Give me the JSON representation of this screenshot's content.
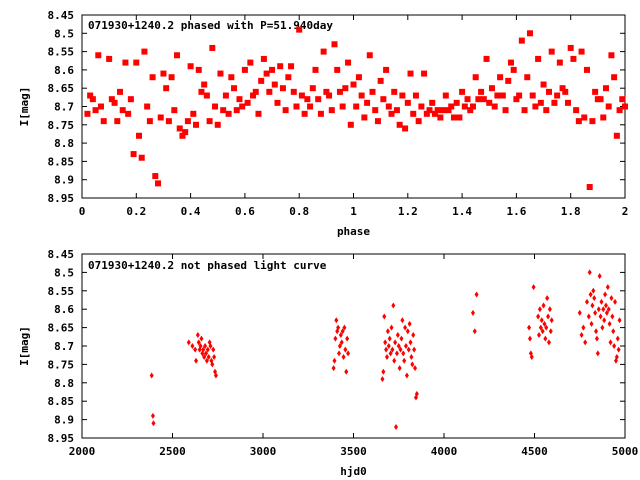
{
  "point_color": "#ff0000",
  "chart_data": [
    {
      "type": "scatter",
      "title": "071930+1240.2 phased with P=51.940day",
      "xlabel": "phase",
      "ylabel": "I[mag]",
      "xlim": [
        0,
        2
      ],
      "ylim": [
        8.45,
        8.95
      ],
      "y_inverted": true,
      "x_ticks": [
        "0",
        "0.2",
        "0.4",
        "0.6",
        "0.8",
        "1",
        "1.2",
        "1.4",
        "1.6",
        "1.8",
        "2"
      ],
      "y_ticks": [
        "8.45",
        "8.5",
        "8.55",
        "8.6",
        "8.65",
        "8.7",
        "8.75",
        "8.8",
        "8.85",
        "8.9",
        "8.95"
      ],
      "grid": false,
      "points": [
        [
          0.02,
          8.72
        ],
        [
          0.03,
          8.67
        ],
        [
          0.04,
          8.68
        ],
        [
          0.05,
          8.71
        ],
        [
          0.06,
          8.56
        ],
        [
          0.07,
          8.7
        ],
        [
          0.08,
          8.74
        ],
        [
          0.1,
          8.57
        ],
        [
          0.11,
          8.68
        ],
        [
          0.12,
          8.69
        ],
        [
          0.13,
          8.74
        ],
        [
          0.14,
          8.66
        ],
        [
          0.15,
          8.71
        ],
        [
          0.16,
          8.58
        ],
        [
          0.17,
          8.72
        ],
        [
          0.18,
          8.68
        ],
        [
          0.19,
          8.83
        ],
        [
          0.2,
          8.58
        ],
        [
          0.21,
          8.78
        ],
        [
          0.22,
          8.84
        ],
        [
          0.23,
          8.55
        ],
        [
          0.24,
          8.7
        ],
        [
          0.25,
          8.74
        ],
        [
          0.26,
          8.62
        ],
        [
          0.27,
          8.89
        ],
        [
          0.28,
          8.91
        ],
        [
          0.29,
          8.73
        ],
        [
          0.3,
          8.61
        ],
        [
          0.31,
          8.65
        ],
        [
          0.32,
          8.74
        ],
        [
          0.33,
          8.62
        ],
        [
          0.34,
          8.71
        ],
        [
          0.35,
          8.56
        ],
        [
          0.36,
          8.76
        ],
        [
          0.37,
          8.78
        ],
        [
          0.38,
          8.77
        ],
        [
          0.39,
          8.74
        ],
        [
          0.4,
          8.59
        ],
        [
          0.41,
          8.72
        ],
        [
          0.42,
          8.75
        ],
        [
          0.43,
          8.6
        ],
        [
          0.44,
          8.66
        ],
        [
          0.45,
          8.64
        ],
        [
          0.46,
          8.67
        ],
        [
          0.47,
          8.74
        ],
        [
          0.48,
          8.54
        ],
        [
          0.49,
          8.7
        ],
        [
          0.5,
          8.75
        ],
        [
          0.51,
          8.61
        ],
        [
          0.52,
          8.71
        ],
        [
          0.53,
          8.67
        ],
        [
          0.54,
          8.72
        ],
        [
          0.55,
          8.62
        ],
        [
          0.56,
          8.65
        ],
        [
          0.57,
          8.71
        ],
        [
          0.58,
          8.68
        ],
        [
          0.59,
          8.7
        ],
        [
          0.6,
          8.6
        ],
        [
          0.61,
          8.69
        ],
        [
          0.62,
          8.58
        ],
        [
          0.63,
          8.67
        ],
        [
          0.64,
          8.66
        ],
        [
          0.65,
          8.72
        ],
        [
          0.66,
          8.63
        ],
        [
          0.67,
          8.57
        ],
        [
          0.68,
          8.61
        ],
        [
          0.69,
          8.66
        ],
        [
          0.7,
          8.6
        ],
        [
          0.71,
          8.64
        ],
        [
          0.72,
          8.69
        ],
        [
          0.73,
          8.59
        ],
        [
          0.74,
          8.65
        ],
        [
          0.75,
          8.71
        ],
        [
          0.76,
          8.62
        ],
        [
          0.77,
          8.59
        ],
        [
          0.78,
          8.66
        ],
        [
          0.79,
          8.7
        ],
        [
          0.8,
          8.49
        ],
        [
          0.81,
          8.67
        ],
        [
          0.82,
          8.72
        ],
        [
          0.83,
          8.68
        ],
        [
          0.84,
          8.7
        ],
        [
          0.85,
          8.65
        ],
        [
          0.86,
          8.6
        ],
        [
          0.87,
          8.68
        ],
        [
          0.88,
          8.72
        ],
        [
          0.89,
          8.55
        ],
        [
          0.9,
          8.66
        ],
        [
          0.91,
          8.67
        ],
        [
          0.92,
          8.71
        ],
        [
          0.93,
          8.53
        ],
        [
          0.94,
          8.6
        ],
        [
          0.95,
          8.66
        ],
        [
          0.96,
          8.7
        ],
        [
          0.97,
          8.65
        ],
        [
          0.98,
          8.58
        ],
        [
          0.99,
          8.75
        ],
        [
          1.0,
          8.64
        ],
        [
          1.01,
          8.7
        ],
        [
          1.02,
          8.62
        ],
        [
          1.03,
          8.67
        ],
        [
          1.04,
          8.73
        ],
        [
          1.05,
          8.69
        ],
        [
          1.06,
          8.56
        ],
        [
          1.07,
          8.66
        ],
        [
          1.08,
          8.71
        ],
        [
          1.09,
          8.74
        ],
        [
          1.1,
          8.63
        ],
        [
          1.11,
          8.68
        ],
        [
          1.12,
          8.6
        ],
        [
          1.13,
          8.7
        ],
        [
          1.14,
          8.72
        ],
        [
          1.15,
          8.66
        ],
        [
          1.16,
          8.71
        ],
        [
          1.17,
          8.75
        ],
        [
          1.18,
          8.67
        ],
        [
          1.19,
          8.76
        ],
        [
          1.2,
          8.69
        ],
        [
          1.21,
          8.61
        ],
        [
          1.22,
          8.72
        ],
        [
          1.23,
          8.67
        ],
        [
          1.24,
          8.74
        ],
        [
          1.25,
          8.7
        ],
        [
          1.26,
          8.61
        ],
        [
          1.27,
          8.72
        ],
        [
          1.28,
          8.71
        ],
        [
          1.29,
          8.69
        ],
        [
          1.3,
          8.72
        ],
        [
          1.31,
          8.71
        ],
        [
          1.32,
          8.73
        ],
        [
          1.33,
          8.71
        ],
        [
          1.34,
          8.67
        ],
        [
          1.35,
          8.71
        ],
        [
          1.36,
          8.7
        ],
        [
          1.37,
          8.73
        ],
        [
          1.38,
          8.69
        ],
        [
          1.39,
          8.73
        ],
        [
          1.4,
          8.66
        ],
        [
          1.41,
          8.7
        ],
        [
          1.42,
          8.68
        ],
        [
          1.43,
          8.71
        ],
        [
          1.44,
          8.7
        ],
        [
          1.45,
          8.62
        ],
        [
          1.46,
          8.68
        ],
        [
          1.47,
          8.66
        ],
        [
          1.48,
          8.68
        ],
        [
          1.49,
          8.57
        ],
        [
          1.5,
          8.69
        ],
        [
          1.51,
          8.65
        ],
        [
          1.52,
          8.7
        ],
        [
          1.53,
          8.67
        ],
        [
          1.54,
          8.62
        ],
        [
          1.55,
          8.67
        ],
        [
          1.56,
          8.71
        ],
        [
          1.57,
          8.63
        ],
        [
          1.58,
          8.58
        ],
        [
          1.59,
          8.6
        ],
        [
          1.6,
          8.68
        ],
        [
          1.61,
          8.67
        ],
        [
          1.62,
          8.52
        ],
        [
          1.63,
          8.71
        ],
        [
          1.64,
          8.62
        ],
        [
          1.65,
          8.5
        ],
        [
          1.66,
          8.67
        ],
        [
          1.67,
          8.7
        ],
        [
          1.68,
          8.57
        ],
        [
          1.69,
          8.69
        ],
        [
          1.7,
          8.64
        ],
        [
          1.71,
          8.71
        ],
        [
          1.72,
          8.66
        ],
        [
          1.73,
          8.55
        ],
        [
          1.74,
          8.69
        ],
        [
          1.75,
          8.67
        ],
        [
          1.76,
          8.58
        ],
        [
          1.77,
          8.65
        ],
        [
          1.78,
          8.66
        ],
        [
          1.79,
          8.69
        ],
        [
          1.8,
          8.54
        ],
        [
          1.81,
          8.57
        ],
        [
          1.82,
          8.71
        ],
        [
          1.83,
          8.74
        ],
        [
          1.84,
          8.55
        ],
        [
          1.85,
          8.73
        ],
        [
          1.86,
          8.6
        ],
        [
          1.87,
          8.92
        ],
        [
          1.88,
          8.74
        ],
        [
          1.89,
          8.66
        ],
        [
          1.9,
          8.68
        ],
        [
          1.91,
          8.68
        ],
        [
          1.92,
          8.73
        ],
        [
          1.93,
          8.65
        ],
        [
          1.94,
          8.7
        ],
        [
          1.95,
          8.56
        ],
        [
          1.96,
          8.62
        ],
        [
          1.97,
          8.78
        ],
        [
          1.98,
          8.71
        ],
        [
          1.99,
          8.68
        ],
        [
          2.0,
          8.7
        ]
      ]
    },
    {
      "type": "scatter",
      "title": "071930+1240.2 not phased light curve",
      "xlabel": "hjd0",
      "ylabel": "I[mag]",
      "xlim": [
        2000,
        5000
      ],
      "ylim": [
        8.45,
        8.95
      ],
      "y_inverted": true,
      "x_ticks": [
        "2000",
        "2500",
        "3000",
        "3500",
        "4000",
        "4500",
        "5000"
      ],
      "y_ticks": [
        "8.45",
        "8.5",
        "8.55",
        "8.6",
        "8.65",
        "8.7",
        "8.75",
        "8.8",
        "8.85",
        "8.9",
        "8.95"
      ],
      "grid": false,
      "points": [
        [
          2385,
          8.78
        ],
        [
          2392,
          8.89
        ],
        [
          2395,
          8.91
        ],
        [
          2590,
          8.69
        ],
        [
          2610,
          8.7
        ],
        [
          2625,
          8.71
        ],
        [
          2630,
          8.74
        ],
        [
          2640,
          8.67
        ],
        [
          2645,
          8.69
        ],
        [
          2650,
          8.71
        ],
        [
          2655,
          8.7
        ],
        [
          2660,
          8.68
        ],
        [
          2665,
          8.72
        ],
        [
          2670,
          8.71
        ],
        [
          2675,
          8.73
        ],
        [
          2680,
          8.7
        ],
        [
          2685,
          8.72
        ],
        [
          2690,
          8.74
        ],
        [
          2695,
          8.71
        ],
        [
          2700,
          8.73
        ],
        [
          2705,
          8.69
        ],
        [
          2710,
          8.7
        ],
        [
          2715,
          8.74
        ],
        [
          2720,
          8.75
        ],
        [
          2725,
          8.71
        ],
        [
          2730,
          8.73
        ],
        [
          2735,
          8.77
        ],
        [
          2740,
          8.78
        ],
        [
          3390,
          8.76
        ],
        [
          3395,
          8.74
        ],
        [
          3400,
          8.68
        ],
        [
          3405,
          8.63
        ],
        [
          3410,
          8.66
        ],
        [
          3415,
          8.65
        ],
        [
          3420,
          8.72
        ],
        [
          3425,
          8.7
        ],
        [
          3430,
          8.67
        ],
        [
          3435,
          8.69
        ],
        [
          3440,
          8.66
        ],
        [
          3445,
          8.73
        ],
        [
          3450,
          8.65
        ],
        [
          3455,
          8.71
        ],
        [
          3460,
          8.77
        ],
        [
          3465,
          8.68
        ],
        [
          3470,
          8.72
        ],
        [
          3660,
          8.79
        ],
        [
          3665,
          8.77
        ],
        [
          3670,
          8.62
        ],
        [
          3675,
          8.69
        ],
        [
          3680,
          8.71
        ],
        [
          3685,
          8.73
        ],
        [
          3690,
          8.66
        ],
        [
          3695,
          8.7
        ],
        [
          3700,
          8.68
        ],
        [
          3705,
          8.72
        ],
        [
          3710,
          8.65
        ],
        [
          3715,
          8.71
        ],
        [
          3720,
          8.59
        ],
        [
          3725,
          8.74
        ],
        [
          3730,
          8.69
        ],
        [
          3735,
          8.92
        ],
        [
          3740,
          8.72
        ],
        [
          3745,
          8.67
        ],
        [
          3750,
          8.7
        ],
        [
          3755,
          8.76
        ],
        [
          3760,
          8.71
        ],
        [
          3765,
          8.68
        ],
        [
          3770,
          8.63
        ],
        [
          3775,
          8.72
        ],
        [
          3780,
          8.74
        ],
        [
          3785,
          8.65
        ],
        [
          3790,
          8.7
        ],
        [
          3795,
          8.78
        ],
        [
          3800,
          8.66
        ],
        [
          3805,
          8.71
        ],
        [
          3810,
          8.64
        ],
        [
          3815,
          8.69
        ],
        [
          3820,
          8.73
        ],
        [
          3825,
          8.75
        ],
        [
          3830,
          8.67
        ],
        [
          3835,
          8.71
        ],
        [
          3840,
          8.76
        ],
        [
          3845,
          8.84
        ],
        [
          3850,
          8.83
        ],
        [
          4160,
          8.61
        ],
        [
          4170,
          8.66
        ],
        [
          4180,
          8.56
        ],
        [
          4470,
          8.65
        ],
        [
          4475,
          8.68
        ],
        [
          4480,
          8.72
        ],
        [
          4485,
          8.73
        ],
        [
          4495,
          8.54
        ],
        [
          4520,
          8.62
        ],
        [
          4525,
          8.67
        ],
        [
          4530,
          8.6
        ],
        [
          4535,
          8.65
        ],
        [
          4540,
          8.63
        ],
        [
          4545,
          8.66
        ],
        [
          4550,
          8.59
        ],
        [
          4555,
          8.64
        ],
        [
          4560,
          8.68
        ],
        [
          4565,
          8.65
        ],
        [
          4570,
          8.57
        ],
        [
          4575,
          8.62
        ],
        [
          4580,
          8.69
        ],
        [
          4585,
          8.6
        ],
        [
          4590,
          8.66
        ],
        [
          4595,
          8.63
        ],
        [
          4750,
          8.61
        ],
        [
          4760,
          8.67
        ],
        [
          4770,
          8.65
        ],
        [
          4780,
          8.69
        ],
        [
          4790,
          8.58
        ],
        [
          4800,
          8.62
        ],
        [
          4805,
          8.5
        ],
        [
          4810,
          8.56
        ],
        [
          4815,
          8.64
        ],
        [
          4820,
          8.59
        ],
        [
          4825,
          8.55
        ],
        [
          4830,
          8.57
        ],
        [
          4835,
          8.61
        ],
        [
          4840,
          8.66
        ],
        [
          4845,
          8.68
        ],
        [
          4850,
          8.72
        ],
        [
          4855,
          8.6
        ],
        [
          4860,
          8.51
        ],
        [
          4865,
          8.62
        ],
        [
          4870,
          8.58
        ],
        [
          4875,
          8.65
        ],
        [
          4880,
          8.6
        ],
        [
          4885,
          8.63
        ],
        [
          4890,
          8.56
        ],
        [
          4895,
          8.59
        ],
        [
          4900,
          8.61
        ],
        [
          4905,
          8.54
        ],
        [
          4910,
          8.6
        ],
        [
          4915,
          8.64
        ],
        [
          4920,
          8.69
        ],
        [
          4925,
          8.57
        ],
        [
          4930,
          8.62
        ],
        [
          4935,
          8.66
        ],
        [
          4940,
          8.7
        ],
        [
          4945,
          8.58
        ],
        [
          4950,
          8.74
        ],
        [
          4955,
          8.73
        ],
        [
          4960,
          8.68
        ],
        [
          4965,
          8.71
        ],
        [
          4970,
          8.63
        ]
      ]
    }
  ]
}
